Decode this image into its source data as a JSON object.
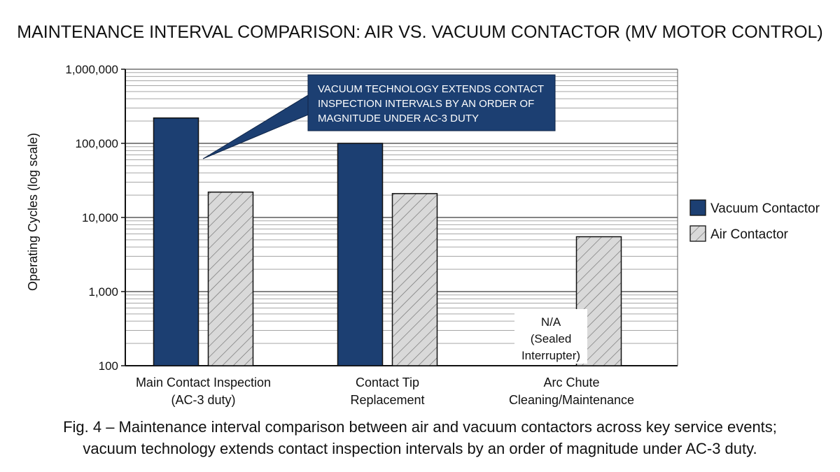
{
  "chart_data": {
    "type": "bar",
    "title": "MAINTENANCE INTERVAL COMPARISON: AIR VS. VACUUM CONTACTOR (MV MOTOR CONTROL)",
    "ylabel": "Operating Cycles (log scale)",
    "yscale": "log",
    "ylim": [
      100,
      1000000
    ],
    "yticks": [
      "100",
      "1,000",
      "10,000",
      "100,000",
      "1,000,000"
    ],
    "categories": [
      [
        "Main Contact Inspection",
        "(AC-3 duty)"
      ],
      [
        "Contact Tip",
        "Replacement"
      ],
      [
        "Arc Chute",
        "Cleaning/Maintenance"
      ]
    ],
    "series": [
      {
        "name": "Vacuum Contactor",
        "color": "#1c3f72",
        "pattern": "solid",
        "values": [
          220000,
          100000,
          null
        ]
      },
      {
        "name": "Air Contactor",
        "color": "#d6d6d6",
        "pattern": "hatched",
        "values": [
          22000,
          21000,
          5500
        ]
      }
    ],
    "legend_position": "right",
    "grid": true,
    "annotations": {
      "callout": [
        "VACUUM TECHNOLOGY EXTENDS CONTACT",
        "INSPECTION INTERVALS BY AN ORDER OF",
        "MAGNITUDE UNDER AC-3 DUTY"
      ],
      "not_applicable": [
        "N/A",
        "(Sealed",
        "Interrupter)"
      ]
    },
    "caption": [
      "Fig. 4 – Maintenance interval comparison between air and vacuum contactors across key service events;",
      "vacuum technology extends contact inspection intervals by an order of magnitude under AC-3 duty."
    ]
  }
}
